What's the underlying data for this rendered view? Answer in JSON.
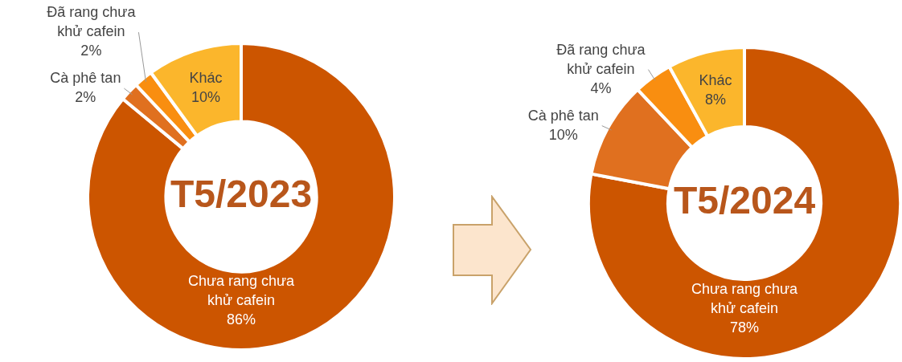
{
  "chart_data": [
    {
      "type": "donut",
      "title": "T5/2023",
      "categories": [
        "Chưa rang chưa khử cafein",
        "Cà phê tan",
        "Đã rang chưa khử cafein",
        "Khác"
      ],
      "values": [
        86,
        2,
        2,
        10
      ],
      "value_labels": [
        "86%",
        "2%",
        "2%",
        "10%"
      ],
      "colors": [
        "#cc5500",
        "#e0701f",
        "#f98e10",
        "#fbb62c"
      ]
    },
    {
      "type": "donut",
      "title": "T5/2024",
      "categories": [
        "Chưa rang chưa khử cafein",
        "Cà phê tan",
        "Đã rang chưa khử cafein",
        "Khác"
      ],
      "values": [
        78,
        10,
        4,
        8
      ],
      "value_labels": [
        "78%",
        "10%",
        "4%",
        "8%"
      ],
      "colors": [
        "#cc5500",
        "#e0701f",
        "#f98e10",
        "#fbb62c"
      ]
    }
  ]
}
